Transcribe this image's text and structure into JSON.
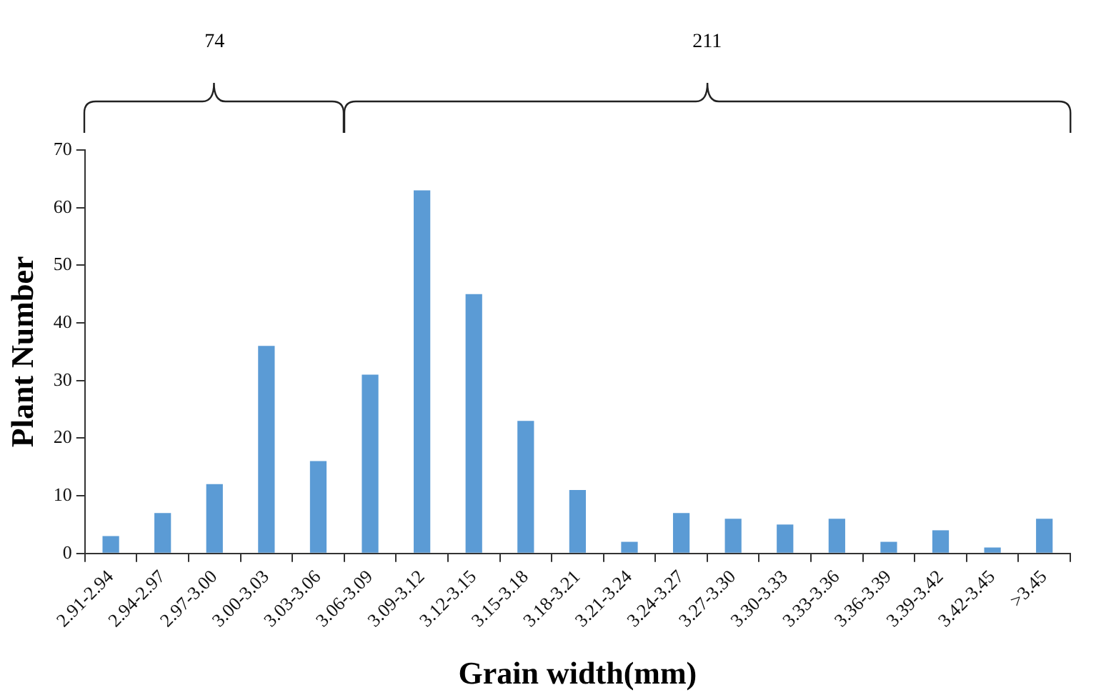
{
  "chart_data": {
    "type": "bar",
    "xlabel": "Grain width(mm)",
    "ylabel": "Plant Number",
    "categories": [
      "2.91-2.94",
      "2.94-2.97",
      "2.97-3.00",
      "3.00-3.03",
      "3.03-3.06",
      "3.06-3.09",
      "3.09-3.12",
      "3.12-3.15",
      "3.15-3.18",
      "3.18-3.21",
      "3.21-3.24",
      "3.24-3.27",
      "3.27-3.30",
      "3.30-3.33",
      "3.33-3.36",
      "3.36-3.39",
      "3.39-3.42",
      "3.42-3.45",
      ">3.45"
    ],
    "values": [
      3,
      7,
      12,
      36,
      16,
      31,
      63,
      45,
      23,
      11,
      2,
      7,
      6,
      5,
      6,
      2,
      4,
      1,
      6
    ],
    "color": "#5b9bd5",
    "ylim": [
      0,
      70
    ],
    "yticks": [
      0,
      10,
      20,
      30,
      40,
      50,
      60,
      70
    ],
    "grid": false,
    "legend": false,
    "annotations": [
      "74",
      "211"
    ]
  }
}
